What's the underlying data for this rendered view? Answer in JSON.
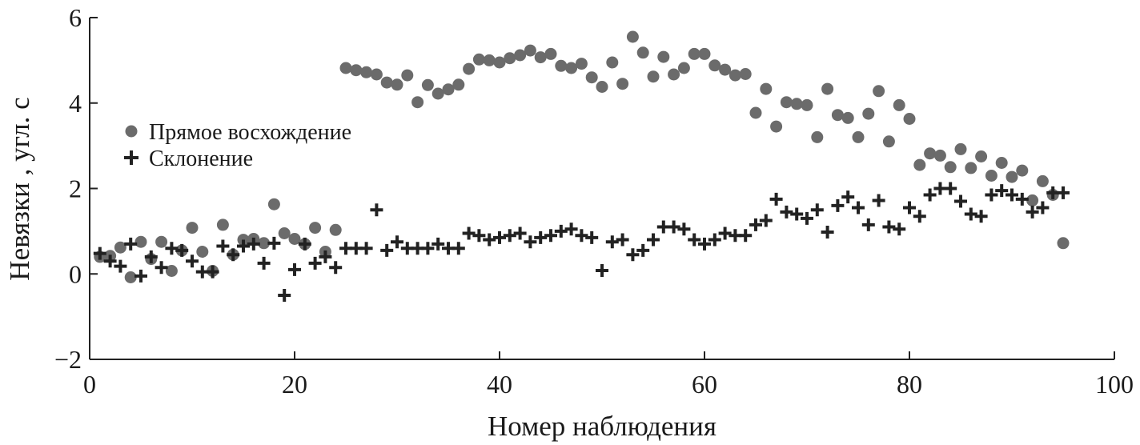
{
  "chart_data": {
    "type": "scatter",
    "xlabel": "Номер наблюдения",
    "ylabel": "Невязки , угл. с",
    "xlim": [
      0,
      100
    ],
    "ylim": [
      -2,
      6
    ],
    "xticks": [
      0,
      20,
      40,
      60,
      80,
      100
    ],
    "yticks": [
      -2,
      0,
      2,
      4,
      6
    ],
    "xtick_labels": [
      "0",
      "20",
      "40",
      "60",
      "80",
      "100"
    ],
    "ytick_labels": [
      "−2",
      "0",
      "2",
      "4",
      "6"
    ],
    "legend_position": "center-left",
    "grid": false,
    "series": [
      {
        "name": "Прямое восхождение",
        "marker": "circle",
        "color": "#6b6b6b",
        "x": [
          1,
          2,
          3,
          4,
          5,
          6,
          7,
          8,
          9,
          10,
          11,
          12,
          13,
          14,
          15,
          16,
          17,
          18,
          19,
          20,
          21,
          22,
          23,
          24,
          25,
          26,
          27,
          28,
          29,
          30,
          31,
          32,
          33,
          34,
          35,
          36,
          37,
          38,
          39,
          40,
          41,
          42,
          43,
          44,
          45,
          46,
          47,
          48,
          49,
          50,
          51,
          52,
          53,
          54,
          55,
          56,
          57,
          58,
          59,
          60,
          61,
          62,
          63,
          64,
          65,
          66,
          67,
          68,
          69,
          70,
          71,
          72,
          73,
          74,
          75,
          76,
          77,
          78,
          79,
          80,
          81,
          82,
          83,
          84,
          85,
          86,
          87,
          88,
          89,
          90,
          91,
          92,
          93,
          94,
          95
        ],
        "y": [
          0.4,
          0.42,
          0.62,
          -0.08,
          0.75,
          0.35,
          0.75,
          0.07,
          0.55,
          1.08,
          0.52,
          0.07,
          1.15,
          0.45,
          0.8,
          0.82,
          0.72,
          1.63,
          0.95,
          0.82,
          0.7,
          1.08,
          0.52,
          1.03,
          4.82,
          4.77,
          4.72,
          4.67,
          4.48,
          4.43,
          4.65,
          4.02,
          4.42,
          4.22,
          4.32,
          4.43,
          4.8,
          5.02,
          5.0,
          4.95,
          5.05,
          5.12,
          5.23,
          5.07,
          5.15,
          4.87,
          4.82,
          4.92,
          4.6,
          4.38,
          4.95,
          4.45,
          5.55,
          5.18,
          4.62,
          5.08,
          4.67,
          4.82,
          5.15,
          5.15,
          4.88,
          4.78,
          4.65,
          4.68,
          3.77,
          4.33,
          3.45,
          4.02,
          3.98,
          3.95,
          3.2,
          4.33,
          3.72,
          3.65,
          3.2,
          3.75,
          4.28,
          3.1,
          3.95,
          3.63,
          2.55,
          2.82,
          2.77,
          2.5,
          2.92,
          2.48,
          2.75,
          2.3,
          2.6,
          2.27,
          2.42,
          1.72,
          2.17,
          1.85,
          0.72
        ]
      },
      {
        "name": "Склонение",
        "marker": "plus",
        "color": "#222222",
        "x": [
          1,
          2,
          3,
          4,
          5,
          6,
          7,
          8,
          9,
          10,
          11,
          12,
          13,
          14,
          15,
          16,
          17,
          18,
          19,
          20,
          21,
          22,
          23,
          24,
          25,
          26,
          27,
          28,
          29,
          30,
          31,
          32,
          33,
          34,
          35,
          36,
          37,
          38,
          39,
          40,
          41,
          42,
          43,
          44,
          45,
          46,
          47,
          48,
          49,
          50,
          51,
          52,
          53,
          54,
          55,
          56,
          57,
          58,
          59,
          60,
          61,
          62,
          63,
          64,
          65,
          66,
          67,
          68,
          69,
          70,
          71,
          72,
          73,
          74,
          75,
          76,
          77,
          78,
          79,
          80,
          81,
          82,
          83,
          84,
          85,
          86,
          87,
          88,
          89,
          90,
          91,
          92,
          93,
          94,
          95
        ],
        "y": [
          0.48,
          0.3,
          0.18,
          0.7,
          -0.05,
          0.4,
          0.15,
          0.6,
          0.55,
          0.3,
          0.05,
          0.05,
          0.65,
          0.45,
          0.65,
          0.7,
          0.25,
          0.72,
          -0.5,
          0.1,
          0.7,
          0.25,
          0.4,
          0.15,
          0.6,
          0.6,
          0.6,
          1.5,
          0.55,
          0.75,
          0.6,
          0.6,
          0.6,
          0.7,
          0.6,
          0.6,
          0.95,
          0.9,
          0.8,
          0.85,
          0.9,
          0.95,
          0.75,
          0.85,
          0.9,
          1.0,
          1.05,
          0.9,
          0.85,
          0.08,
          0.75,
          0.8,
          0.45,
          0.55,
          0.8,
          1.1,
          1.1,
          1.05,
          0.8,
          0.7,
          0.8,
          0.95,
          0.9,
          0.9,
          1.15,
          1.25,
          1.75,
          1.45,
          1.4,
          1.3,
          1.5,
          0.98,
          1.6,
          1.8,
          1.55,
          1.15,
          1.72,
          1.1,
          1.05,
          1.55,
          1.35,
          1.85,
          2.0,
          2.0,
          1.7,
          1.4,
          1.35,
          1.85,
          1.95,
          1.85,
          1.75,
          1.45,
          1.55,
          1.9,
          1.9
        ]
      }
    ]
  }
}
